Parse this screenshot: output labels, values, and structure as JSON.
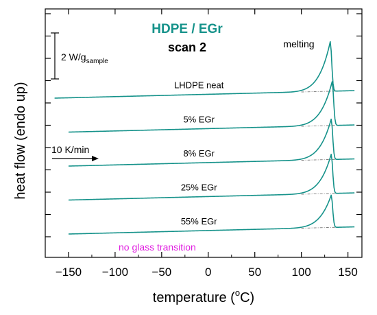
{
  "chart_data": {
    "type": "line",
    "title": "HDPE / EGr",
    "subtitle": "scan 2",
    "xlabel_prefix": "temperature (",
    "xlabel_sup": "o",
    "xlabel_suffix": "C)",
    "ylabel": "heat flow (endo up)",
    "xlim": [
      -175,
      165
    ],
    "xticks": [
      -150,
      -100,
      -50,
      0,
      50,
      100,
      150
    ],
    "y_tick_labels_shown": false,
    "scale_bar_prefix": "2 W/g",
    "scale_bar_sub": "sample",
    "rate_note": "10 K/min",
    "peak_note": "melting",
    "bottom_note": "no glass transition",
    "line_color": "#15928A",
    "title_color": "#15928A",
    "note_color": "#E020E0",
    "series": [
      {
        "name": "LHDPE neat",
        "x_start": -165,
        "x_end": 157,
        "peak_x": 131,
        "peak_height": 4.3,
        "offset": 0
      },
      {
        "name": "5% EGr",
        "x_start": -150,
        "x_end": 157,
        "peak_x": 133,
        "peak_height": 3.8,
        "offset": 1
      },
      {
        "name": "8% EGr",
        "x_start": -150,
        "x_end": 157,
        "peak_x": 132,
        "peak_height": 3.5,
        "offset": 2
      },
      {
        "name": "25% EGr",
        "x_start": -150,
        "x_end": 157,
        "peak_x": 132,
        "peak_height": 3.4,
        "offset": 3
      },
      {
        "name": "55% EGr",
        "x_start": -150,
        "x_end": 157,
        "peak_x": 132,
        "peak_height": 2.8,
        "offset": 4
      }
    ]
  }
}
